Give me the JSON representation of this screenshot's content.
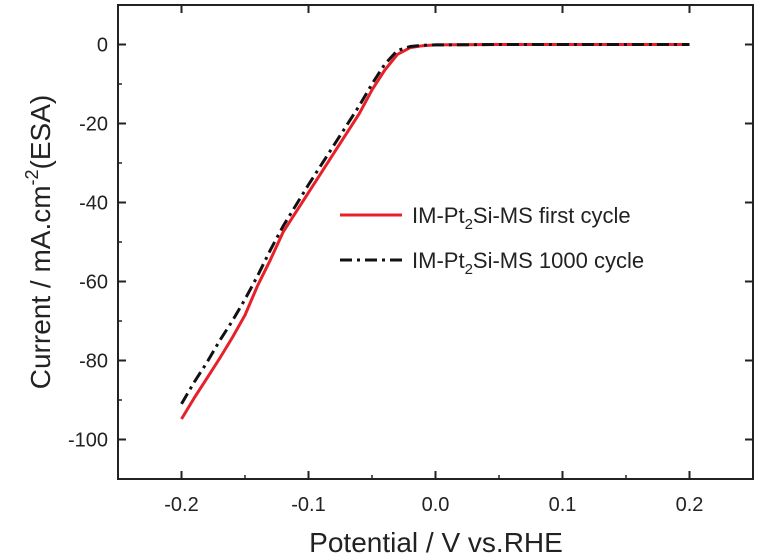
{
  "chart_data": {
    "type": "line",
    "title": "",
    "xlabel": "Potential / V vs.RHE",
    "ylabel": {
      "main": "Current / mA.cm",
      "sup": "-2",
      "tail": "(ESA)"
    },
    "xlim": [
      -0.25,
      0.25
    ],
    "ylim": [
      -110,
      10
    ],
    "x_ticks": [
      -0.2,
      -0.1,
      0.0,
      0.1,
      0.2
    ],
    "x_tick_labels": [
      "-0.2",
      "-0.1",
      "0.0",
      "0.1",
      "0.2"
    ],
    "y_ticks": [
      0,
      -20,
      -40,
      -60,
      -80,
      -100
    ],
    "y_tick_labels": [
      "0",
      "-20",
      "-40",
      "-60",
      "-80",
      "-100"
    ],
    "grid": false,
    "legend_position": "center-right",
    "series": [
      {
        "name": {
          "pre": "IM-Pt",
          "sub": "2",
          "post": "Si-MS first cycle"
        },
        "color": "#e8202a",
        "dash": "solid",
        "points": [
          [
            -0.2,
            -94.8
          ],
          [
            -0.19,
            -89.5
          ],
          [
            -0.18,
            -84.5
          ],
          [
            -0.17,
            -79.5
          ],
          [
            -0.16,
            -74.2
          ],
          [
            -0.15,
            -68.5
          ],
          [
            -0.14,
            -61.0
          ],
          [
            -0.13,
            -54.5
          ],
          [
            -0.12,
            -47.5
          ],
          [
            -0.1,
            -37.5
          ],
          [
            -0.08,
            -27.5
          ],
          [
            -0.06,
            -17.5
          ],
          [
            -0.05,
            -11.5
          ],
          [
            -0.04,
            -6.5
          ],
          [
            -0.03,
            -2.5
          ],
          [
            -0.02,
            -0.8
          ],
          [
            -0.01,
            -0.3
          ],
          [
            0.0,
            -0.1
          ],
          [
            0.05,
            0.0
          ],
          [
            0.1,
            0.0
          ],
          [
            0.15,
            0.0
          ],
          [
            0.2,
            0.0
          ]
        ]
      },
      {
        "name": {
          "pre": "IM-Pt",
          "sub": "2",
          "post": "Si-MS 1000 cycle"
        },
        "color": "#111111",
        "dash": "dash-dot",
        "points": [
          [
            -0.2,
            -91.0
          ],
          [
            -0.19,
            -85.5
          ],
          [
            -0.18,
            -80.5
          ],
          [
            -0.17,
            -75.0
          ],
          [
            -0.16,
            -70.0
          ],
          [
            -0.15,
            -64.5
          ],
          [
            -0.14,
            -58.5
          ],
          [
            -0.13,
            -52.0
          ],
          [
            -0.12,
            -46.0
          ],
          [
            -0.1,
            -35.5
          ],
          [
            -0.08,
            -25.5
          ],
          [
            -0.06,
            -15.5
          ],
          [
            -0.05,
            -10.0
          ],
          [
            -0.04,
            -5.0
          ],
          [
            -0.03,
            -1.5
          ],
          [
            -0.02,
            -0.5
          ],
          [
            -0.01,
            -0.2
          ],
          [
            0.0,
            -0.1
          ],
          [
            0.05,
            0.0
          ],
          [
            0.1,
            0.0
          ],
          [
            0.15,
            0.0
          ],
          [
            0.2,
            0.0
          ]
        ]
      }
    ]
  }
}
